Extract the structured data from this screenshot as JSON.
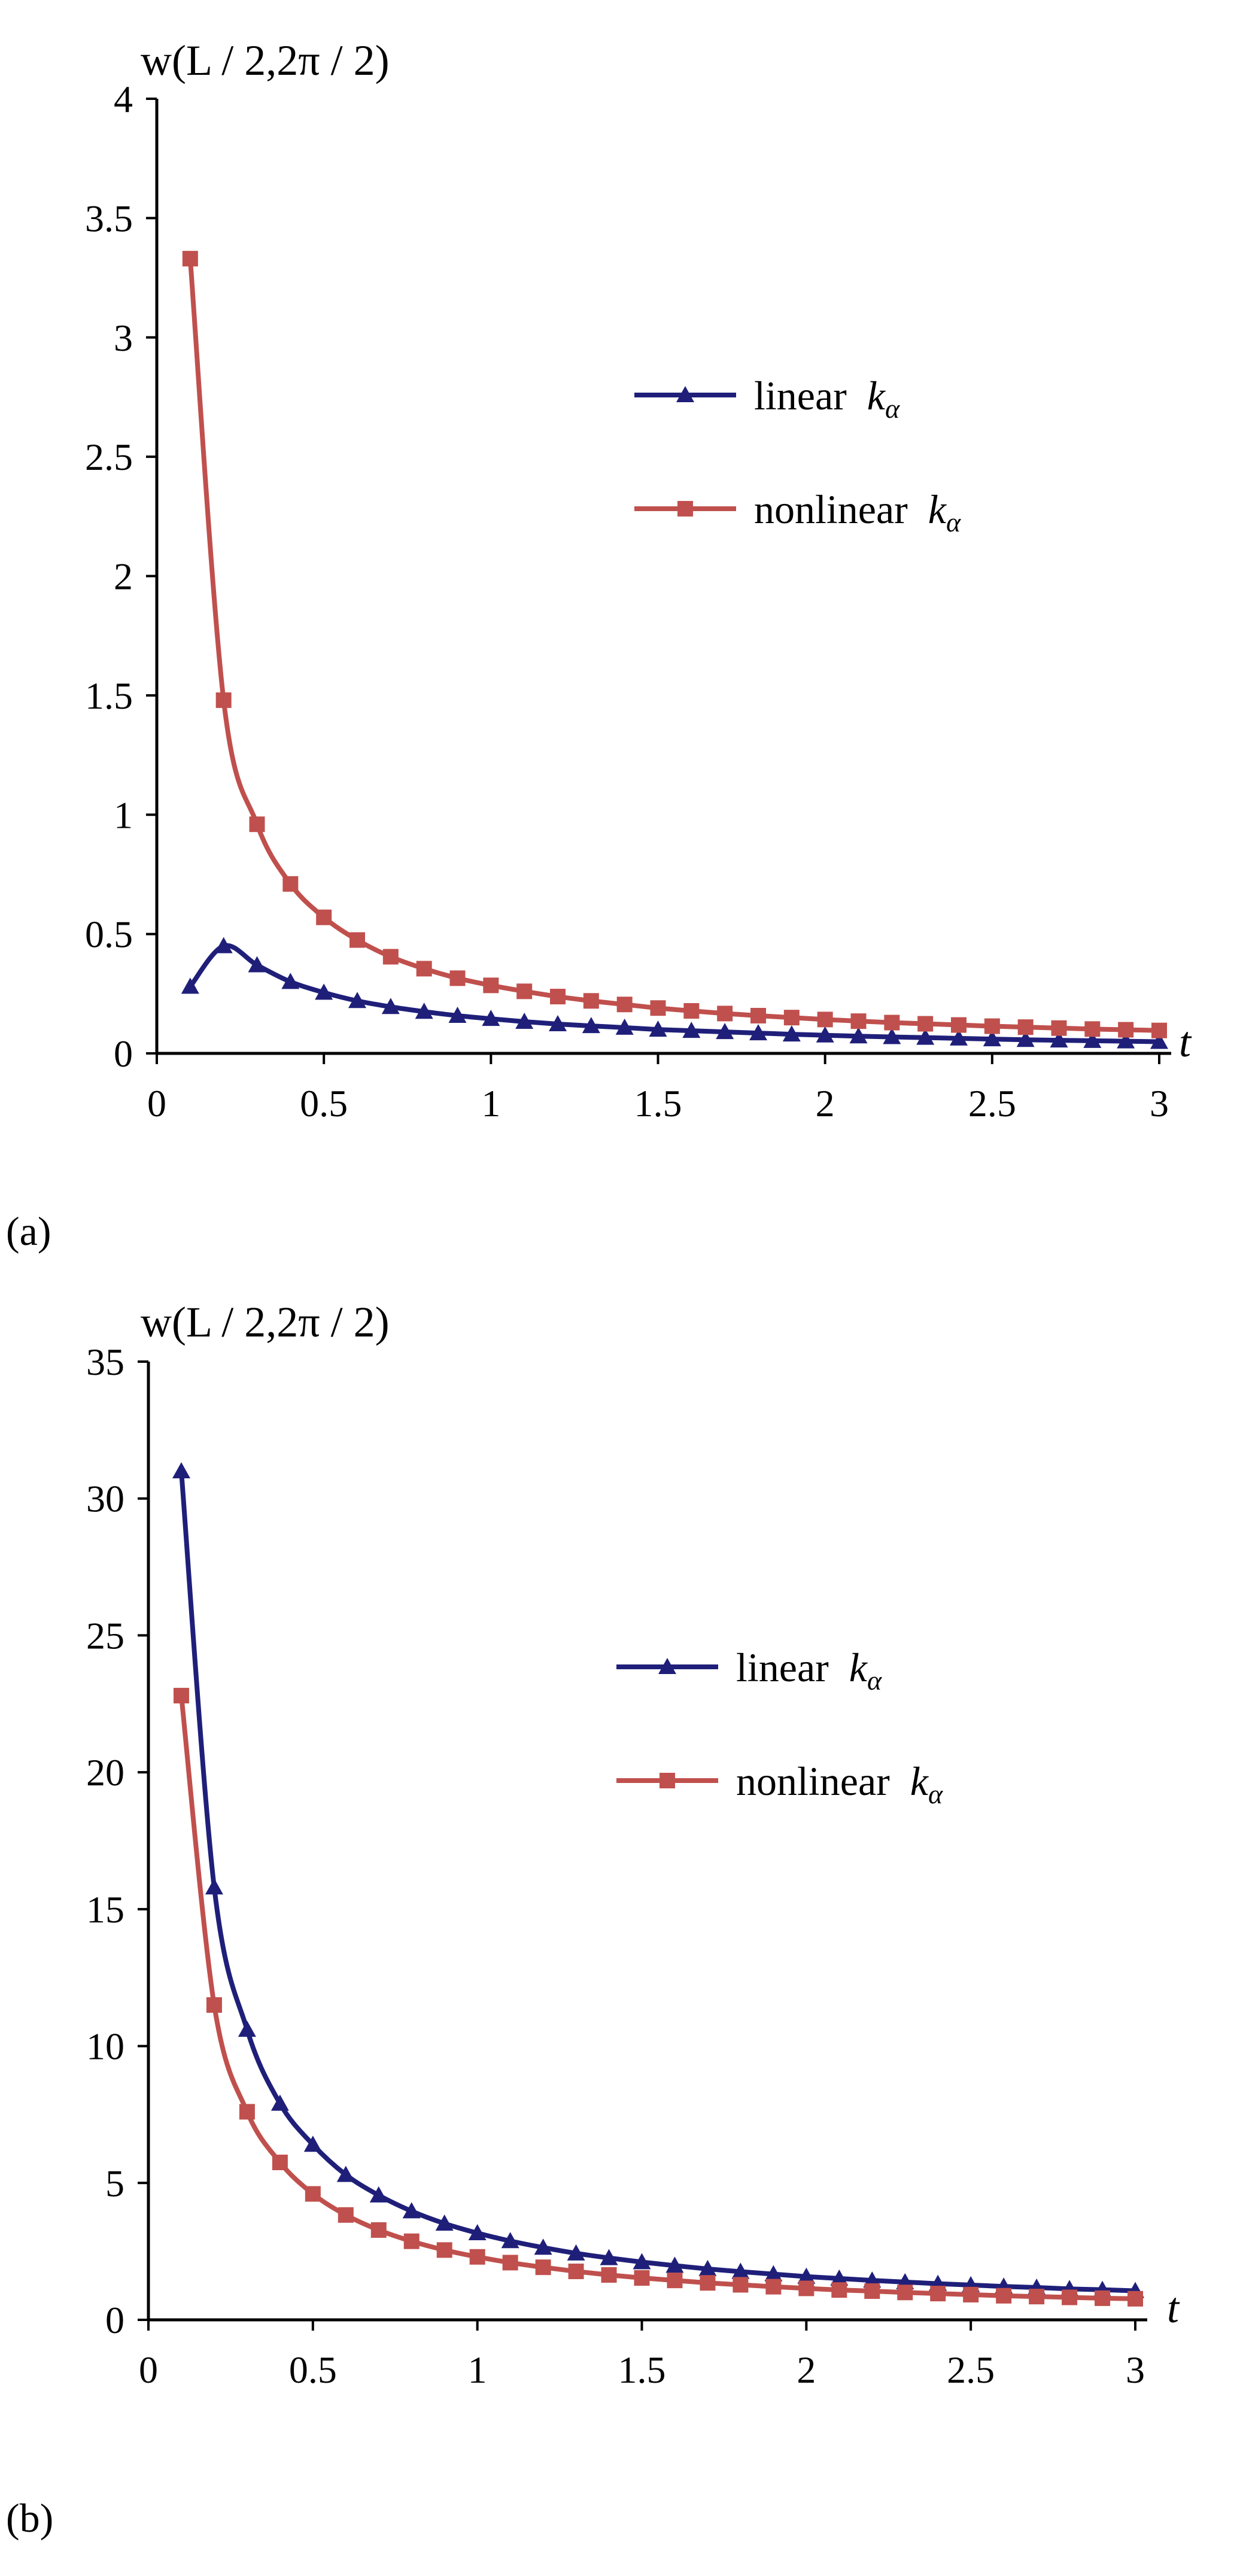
{
  "chart_data": [
    {
      "type": "line",
      "ylabel": "w(L / 2,2π / 2)",
      "xlabel": "t",
      "xlim": [
        0,
        3
      ],
      "ylim": [
        0,
        4
      ],
      "xticks": [
        "0",
        "0.5",
        "1",
        "1.5",
        "2",
        "2.5",
        "3"
      ],
      "yticks": [
        "0",
        "0.5",
        "1",
        "1.5",
        "2",
        "2.5",
        "3",
        "3.5",
        "4"
      ],
      "grid": false,
      "legend_position": "right-middle",
      "x": [
        0.1,
        0.2,
        0.3,
        0.4,
        0.5,
        0.6,
        0.7,
        0.8,
        0.9,
        1.0,
        1.1,
        1.2,
        1.3,
        1.4,
        1.5,
        1.6,
        1.7,
        1.8,
        1.9,
        2.0,
        2.1,
        2.2,
        2.3,
        2.4,
        2.5,
        2.6,
        2.7,
        2.8,
        2.9,
        3.0
      ],
      "series": [
        {
          "name": "linear k_α",
          "legend_label": "linear",
          "legend_symbol": "k",
          "legend_subscript": "α",
          "color": "#1f1f7a",
          "marker": "triangle",
          "values": [
            0.28,
            0.45,
            0.37,
            0.3,
            0.255,
            0.22,
            0.195,
            0.175,
            0.158,
            0.145,
            0.133,
            0.123,
            0.115,
            0.108,
            0.1,
            0.095,
            0.09,
            0.085,
            0.08,
            0.076,
            0.072,
            0.069,
            0.066,
            0.063,
            0.06,
            0.057,
            0.055,
            0.053,
            0.051,
            0.049
          ]
        },
        {
          "name": "nonlinear k_α",
          "legend_label": "nonlinear",
          "legend_symbol": "k",
          "legend_subscript": "α",
          "color": "#c0504d",
          "marker": "square",
          "values": [
            3.33,
            1.48,
            0.96,
            0.71,
            0.57,
            0.475,
            0.405,
            0.355,
            0.315,
            0.285,
            0.26,
            0.238,
            0.22,
            0.205,
            0.19,
            0.178,
            0.167,
            0.158,
            0.15,
            0.142,
            0.135,
            0.129,
            0.124,
            0.119,
            0.114,
            0.11,
            0.106,
            0.102,
            0.099,
            0.096
          ]
        }
      ],
      "panel_label": "(a)"
    },
    {
      "type": "line",
      "ylabel": "w(L / 2,2π / 2)",
      "xlabel": "t",
      "xlim": [
        0,
        3
      ],
      "ylim": [
        0,
        35
      ],
      "xticks": [
        "0",
        "0.5",
        "1",
        "1.5",
        "2",
        "2.5",
        "3"
      ],
      "yticks": [
        "0",
        "5",
        "10",
        "15",
        "20",
        "25",
        "30",
        "35"
      ],
      "grid": false,
      "legend_position": "right-middle",
      "x": [
        0.1,
        0.2,
        0.3,
        0.4,
        0.5,
        0.6,
        0.7,
        0.8,
        0.9,
        1.0,
        1.1,
        1.2,
        1.3,
        1.4,
        1.5,
        1.6,
        1.7,
        1.8,
        1.9,
        2.0,
        2.1,
        2.2,
        2.3,
        2.4,
        2.5,
        2.6,
        2.7,
        2.8,
        2.9,
        3.0
      ],
      "series": [
        {
          "name": "linear k_α",
          "legend_label": "linear",
          "legend_symbol": "k",
          "legend_subscript": "α",
          "color": "#1f1f7a",
          "marker": "triangle",
          "values": [
            31.0,
            15.8,
            10.6,
            7.9,
            6.4,
            5.3,
            4.55,
            3.97,
            3.52,
            3.17,
            2.88,
            2.64,
            2.43,
            2.26,
            2.11,
            1.98,
            1.86,
            1.76,
            1.67,
            1.58,
            1.51,
            1.44,
            1.38,
            1.32,
            1.27,
            1.22,
            1.18,
            1.13,
            1.1,
            1.06
          ]
        },
        {
          "name": "nonlinear k_α",
          "legend_label": "nonlinear",
          "legend_symbol": "k",
          "legend_subscript": "α",
          "color": "#c0504d",
          "marker": "square",
          "values": [
            22.8,
            11.5,
            7.6,
            5.75,
            4.6,
            3.83,
            3.28,
            2.87,
            2.55,
            2.3,
            2.09,
            1.92,
            1.77,
            1.64,
            1.53,
            1.44,
            1.35,
            1.28,
            1.21,
            1.15,
            1.09,
            1.05,
            1.0,
            0.96,
            0.92,
            0.88,
            0.85,
            0.82,
            0.79,
            0.77
          ]
        }
      ],
      "panel_label": "(b)"
    }
  ]
}
